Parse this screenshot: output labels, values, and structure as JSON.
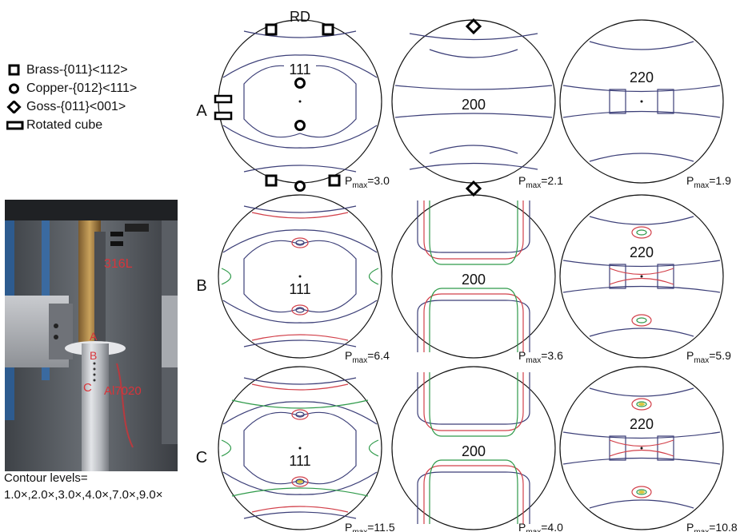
{
  "legend": {
    "items": [
      {
        "symbol": "square-icon",
        "text": "Brass-{011}<112>"
      },
      {
        "symbol": "circle-icon",
        "text": "Copper-{012}<111>"
      },
      {
        "symbol": "diamond-icon",
        "text": "Goss-{011}<001>"
      },
      {
        "symbol": "rectangle-icon",
        "text": "Rotated cube"
      }
    ]
  },
  "photo": {
    "label_top": "316L",
    "label_bottom": "Al7020",
    "points": [
      "A",
      "B",
      "C"
    ]
  },
  "contour_note": {
    "line1": "Contour levels=",
    "line2": "1.0×,2.0×,3.0×,4.0×,7.0×,9.0×"
  },
  "rd_label": "RD",
  "rows": [
    {
      "label": "A",
      "poles": [
        {
          "plane": "111",
          "pmax_prefix": "P",
          "pmax_sub": "max",
          "pmax_value": "=3.0"
        },
        {
          "plane": "200",
          "pmax_prefix": "P",
          "pmax_sub": "max",
          "pmax_value": "=2.1"
        },
        {
          "plane": "220",
          "pmax_prefix": "P",
          "pmax_sub": "max",
          "pmax_value": "=1.9"
        }
      ]
    },
    {
      "label": "B",
      "poles": [
        {
          "plane": "111",
          "pmax_prefix": "P",
          "pmax_sub": "max",
          "pmax_value": "=6.4"
        },
        {
          "plane": "200",
          "pmax_prefix": "P",
          "pmax_sub": "max",
          "pmax_value": "=3.6"
        },
        {
          "plane": "220",
          "pmax_prefix": "P",
          "pmax_sub": "max",
          "pmax_value": "=5.9"
        }
      ]
    },
    {
      "label": "C",
      "poles": [
        {
          "plane": "111",
          "pmax_prefix": "P",
          "pmax_sub": "max",
          "pmax_value": "=11.5"
        },
        {
          "plane": "200",
          "pmax_prefix": "P",
          "pmax_sub": "max",
          "pmax_value": "=4.0"
        },
        {
          "plane": "220",
          "pmax_prefix": "P",
          "pmax_sub": "max",
          "pmax_value": "=10.8"
        }
      ]
    }
  ],
  "colors": {
    "contour_blue": "#3c3f78",
    "contour_red": "#d2404a",
    "contour_green": "#2f9a4a",
    "contour_yellow": "#d8c640",
    "photo_label": "#d8343a"
  }
}
